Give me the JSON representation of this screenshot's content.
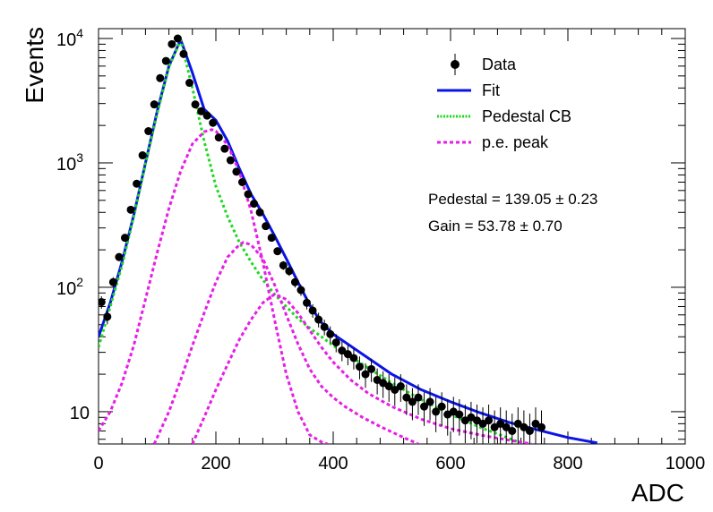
{
  "chart_data": {
    "type": "scatter",
    "title": "",
    "xlabel": "ADC",
    "ylabel": "Events",
    "xlim": [
      0,
      1000
    ],
    "ylim": [
      5.5,
      12000
    ],
    "yscale": "log",
    "x_ticks": [
      0,
      200,
      400,
      600,
      800,
      1000
    ],
    "y_ticks": [
      {
        "value": 10,
        "base": "10",
        "exp": ""
      },
      {
        "value": 100,
        "base": "10",
        "exp": "2"
      },
      {
        "value": 1000,
        "base": "10",
        "exp": "3"
      },
      {
        "value": 10000,
        "base": "10",
        "exp": "4"
      }
    ],
    "legend": {
      "position": "top-right",
      "entries": [
        {
          "label": "Data",
          "style": "marker",
          "color": "#000000"
        },
        {
          "label": "Fit",
          "style": "solid",
          "color": "#0a14e6"
        },
        {
          "label": "Pedestal CB",
          "style": "dotted",
          "color": "#1ed81e"
        },
        {
          "label": "p.e. peak",
          "style": "dashed",
          "color": "#e61ee6"
        }
      ]
    },
    "annotations": [
      {
        "text": "Pedestal = 139.05 ± 0.23"
      },
      {
        "text": "Gain = 53.78 ± 0.70"
      }
    ],
    "series": [
      {
        "name": "Data",
        "kind": "points",
        "color": "#000000",
        "x": [
          5,
          15,
          25,
          35,
          45,
          55,
          65,
          75,
          85,
          95,
          105,
          115,
          125,
          135,
          145,
          155,
          165,
          175,
          185,
          195,
          205,
          215,
          225,
          235,
          245,
          255,
          265,
          275,
          285,
          295,
          305,
          315,
          325,
          335,
          345,
          355,
          365,
          375,
          385,
          395,
          405,
          415,
          425,
          435,
          445,
          455,
          465,
          475,
          485,
          495,
          505,
          515,
          525,
          535,
          545,
          555,
          565,
          575,
          585,
          595,
          605,
          615,
          625,
          635,
          645,
          655,
          665,
          675,
          685,
          695,
          705,
          715,
          725,
          735,
          745,
          755
        ],
        "y": [
          76,
          58,
          110,
          175,
          250,
          420,
          680,
          1150,
          1800,
          2950,
          4800,
          6600,
          9000,
          10000,
          7500,
          4400,
          2950,
          2600,
          2400,
          2100,
          1600,
          1300,
          1050,
          850,
          700,
          560,
          470,
          400,
          310,
          250,
          195,
          150,
          135,
          110,
          95,
          75,
          65,
          55,
          48,
          42,
          36,
          31,
          29,
          27,
          23,
          20,
          22,
          18,
          17,
          16,
          15,
          16,
          13,
          12,
          13,
          11,
          12,
          10,
          11,
          9.5,
          10,
          9.5,
          8.5,
          9,
          8.5,
          8,
          8.5,
          7.5,
          8,
          7.5,
          7,
          8,
          7.5,
          7,
          8,
          7.5
        ]
      },
      {
        "name": "Fit",
        "kind": "line",
        "color": "#0a14e6",
        "x": [
          0,
          20,
          40,
          60,
          80,
          100,
          120,
          140,
          160,
          180,
          200,
          220,
          240,
          260,
          280,
          300,
          320,
          340,
          360,
          380,
          400,
          450,
          500,
          550,
          600,
          650,
          700,
          750,
          800,
          850
        ],
        "y": [
          40,
          75,
          160,
          380,
          1000,
          2600,
          6000,
          9800,
          5300,
          2700,
          2200,
          1500,
          900,
          560,
          390,
          260,
          170,
          110,
          72,
          52,
          42,
          29,
          20,
          15,
          12,
          9.8,
          8.2,
          7.1,
          6.2,
          5.6
        ]
      },
      {
        "name": "Pedestal CB",
        "kind": "line",
        "color": "#1ed81e",
        "x": [
          0,
          20,
          40,
          60,
          80,
          100,
          120,
          140,
          160,
          180,
          200,
          220,
          240,
          260,
          280,
          300,
          320,
          340,
          360,
          380,
          400,
          450,
          500,
          550,
          600,
          650,
          700,
          720
        ],
        "y": [
          33,
          70,
          150,
          370,
          980,
          2500,
          5900,
          9700,
          4000,
          1500,
          650,
          370,
          230,
          160,
          115,
          88,
          70,
          56,
          47,
          40,
          34,
          24,
          17,
          12.5,
          9.5,
          7.5,
          6.1,
          5.6
        ]
      },
      {
        "name": "p.e. peak 1",
        "kind": "line",
        "color": "#e61ee6",
        "x": [
          0,
          20,
          40,
          60,
          80,
          100,
          120,
          140,
          160,
          180,
          193,
          200,
          220,
          240,
          260,
          280,
          300,
          320,
          340,
          360,
          380,
          390
        ],
        "y": [
          7,
          10,
          17,
          34,
          80,
          190,
          430,
          860,
          1420,
          1780,
          1850,
          1800,
          1400,
          850,
          410,
          160,
          55,
          20,
          10,
          6.5,
          5.7,
          5.5
        ]
      },
      {
        "name": "p.e. peak 2",
        "kind": "line",
        "color": "#e61ee6",
        "x": [
          95,
          120,
          140,
          160,
          180,
          200,
          220,
          240,
          247,
          260,
          280,
          300,
          320,
          340,
          360,
          380,
          400,
          420,
          450,
          480,
          520,
          545
        ],
        "y": [
          5.5,
          10,
          18,
          34,
          62,
          110,
          175,
          220,
          230,
          220,
          170,
          105,
          60,
          35,
          22,
          16,
          13,
          11,
          9,
          7.6,
          6.2,
          5.5
        ]
      },
      {
        "name": "p.e. peak 3",
        "kind": "line",
        "color": "#e61ee6",
        "x": [
          160,
          180,
          200,
          220,
          240,
          260,
          280,
          300,
          320,
          340,
          360,
          380,
          400,
          430,
          460,
          500,
          550,
          600,
          650,
          700,
          738
        ],
        "y": [
          5.5,
          9,
          15,
          24,
          38,
          55,
          75,
          88,
          80,
          62,
          45,
          33,
          25,
          18,
          14,
          11,
          8.7,
          7.3,
          6.5,
          5.9,
          5.5
        ]
      }
    ]
  }
}
